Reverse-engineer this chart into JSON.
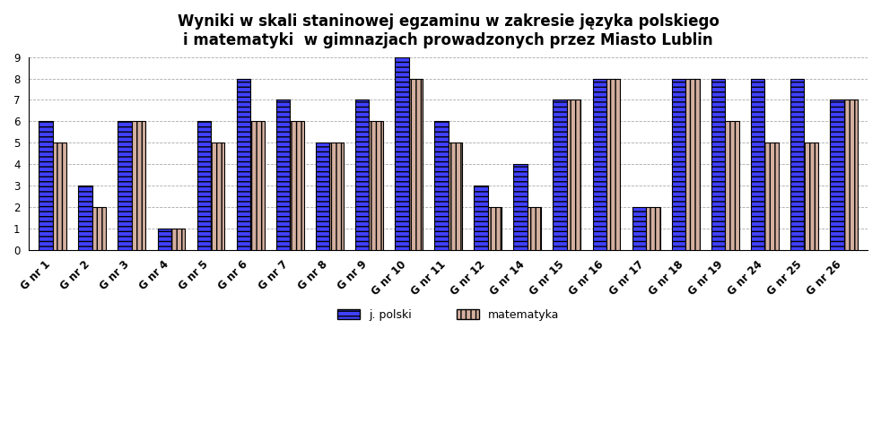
{
  "title": "Wyniki w skali staninowej egzaminu w zakresie języka polskiego\ni matematyki  w gimnazjach prowadzonych przez Miasto Lublin",
  "categories": [
    "G nr 1",
    "G nr 2",
    "G nr 3",
    "G nr 4",
    "G nr 5",
    "G nr 6",
    "G nr 7",
    "G nr 8",
    "G nr 9",
    "G nr 10",
    "G nr 11",
    "G nr 12",
    "G nr 14",
    "G nr 15",
    "G nr 16",
    "G nr 17",
    "G nr 18",
    "G nr 19",
    "G nr 24",
    "G nr 25",
    "G nr 26"
  ],
  "polski": [
    6,
    3,
    6,
    1,
    6,
    8,
    7,
    5,
    7,
    9,
    6,
    3,
    4,
    7,
    8,
    2,
    8,
    8,
    8,
    8,
    7
  ],
  "matematyka": [
    5,
    2,
    6,
    1,
    5,
    6,
    6,
    5,
    6,
    8,
    5,
    2,
    2,
    7,
    8,
    2,
    8,
    6,
    5,
    5,
    7
  ],
  "polski_color": "#4040ff",
  "matematyka_color": "#d4b0a0",
  "hatch_polski": "---",
  "hatch_matematyka": "|||",
  "bar_edgecolor": "#000000",
  "background_color": "#ffffff",
  "plot_bg_color": "#ffffff",
  "grid_color": "#aaaaaa",
  "ylim": [
    0,
    9
  ],
  "yticks": [
    0,
    1,
    2,
    3,
    4,
    5,
    6,
    7,
    8,
    9
  ],
  "legend_polski": "j. polski",
  "legend_matematyka": "matematyka",
  "title_fontsize": 12,
  "tick_fontsize": 8.5,
  "bar_width": 0.35
}
